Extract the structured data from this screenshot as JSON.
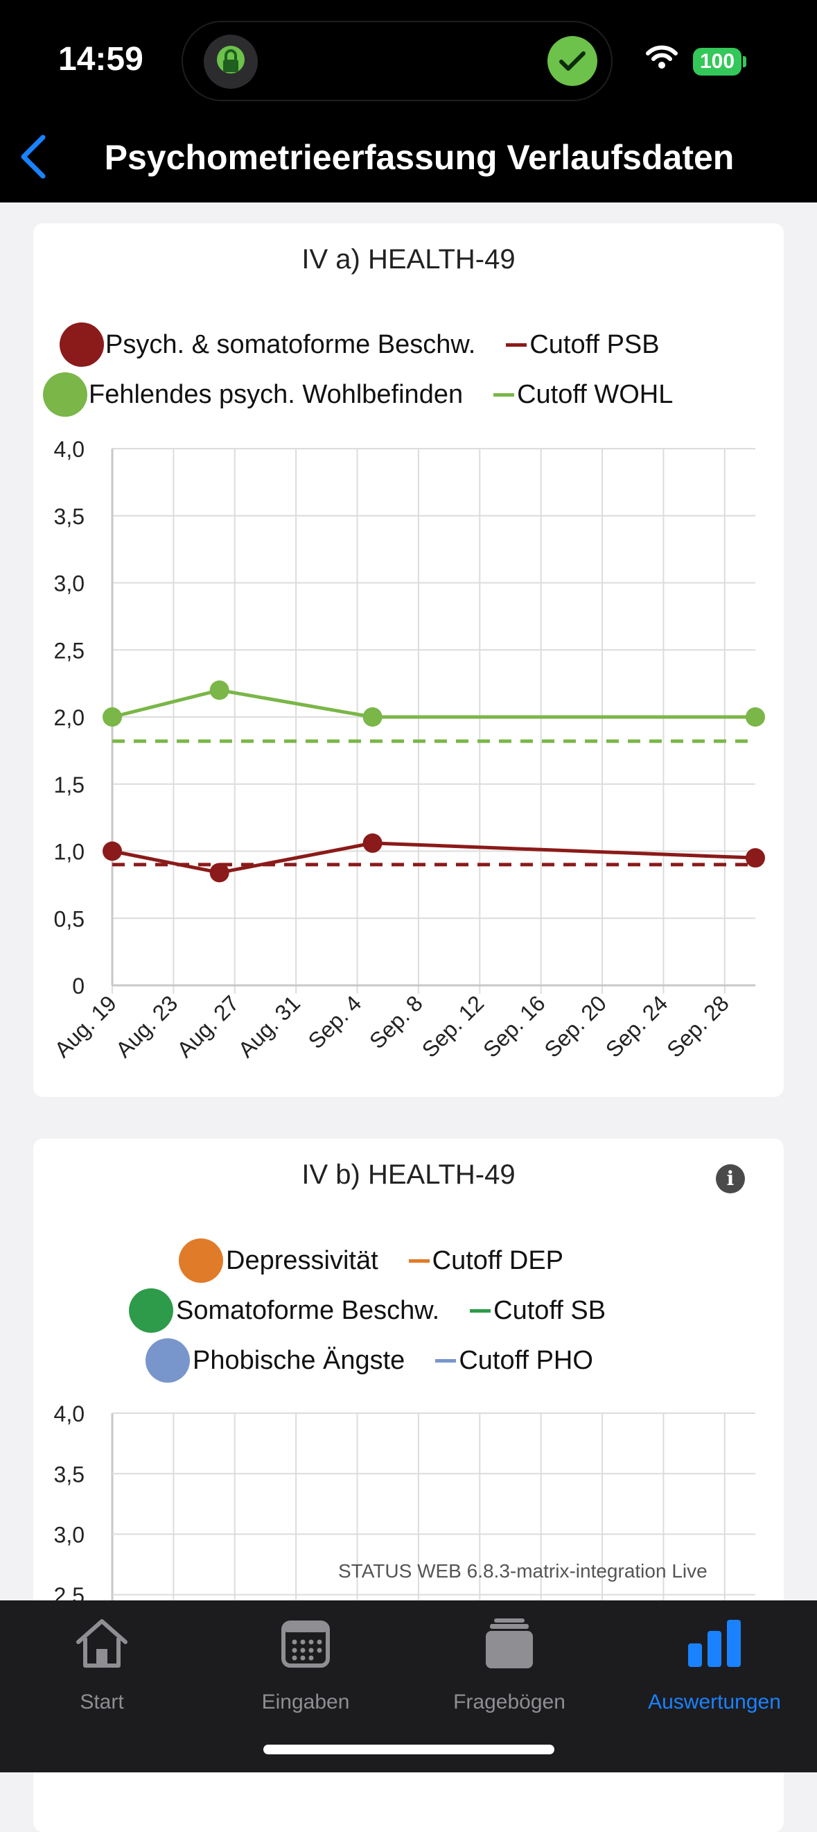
{
  "status_bar": {
    "time": "14:59",
    "battery": "100"
  },
  "nav": {
    "title": "Psychometrieerfassung Verlaufsdaten"
  },
  "charts": [
    {
      "title": "IV a) HEALTH-49",
      "legend": [
        {
          "label": "Psych. & somatoforme Beschw.",
          "color": "#8b1a1a"
        },
        {
          "label": "Cutoff PSB",
          "color": "#8b1a1a"
        },
        {
          "label": "Fehlendes psych. Wohlbefinden",
          "color": "#7ab648"
        },
        {
          "label": "Cutoff WOHL",
          "color": "#7ab648"
        }
      ]
    },
    {
      "title": "IV b) HEALTH-49",
      "info_icon": "i",
      "legend": [
        {
          "label": "Depressivität",
          "color": "#e07b2a"
        },
        {
          "label": "Cutoff DEP",
          "color": "#e07b2a"
        },
        {
          "label": "Somatoforme Beschw.",
          "color": "#2e9b4a"
        },
        {
          "label": "Cutoff SB",
          "color": "#2e9b4a"
        },
        {
          "label": "Phobische Ängste",
          "color": "#7896cc"
        },
        {
          "label": "Cutoff PHO",
          "color": "#7896cc"
        }
      ]
    }
  ],
  "chart_data": [
    {
      "type": "line",
      "title": "IV a) HEALTH-49",
      "ylim": [
        0,
        4
      ],
      "ytick_values": [
        0,
        0.5,
        1,
        1.5,
        2,
        2.5,
        3,
        3.5,
        4
      ],
      "ytick_labels": [
        "0",
        "0,5",
        "1,0",
        "1,5",
        "2,0",
        "2,5",
        "3,0",
        "3,5",
        "4,0"
      ],
      "xlim_days": [
        0,
        42
      ],
      "xtick_days": [
        0,
        4,
        8,
        12,
        16,
        20,
        24,
        28,
        32,
        36,
        40
      ],
      "xtick_labels": [
        "Aug. 19",
        "Aug. 23",
        "Aug. 27",
        "Aug. 31",
        "Sep. 4",
        "Sep. 8",
        "Sep. 12",
        "Sep. 16",
        "Sep. 20",
        "Sep. 24",
        "Sep. 28"
      ],
      "series": [
        {
          "name": "Psych. & somatoforme Beschw.",
          "color": "#8b1a1a",
          "x_days": [
            0,
            7,
            17,
            42
          ],
          "values": [
            1.0,
            0.84,
            1.06,
            0.95
          ]
        },
        {
          "name": "Fehlendes psych. Wohlbefinden",
          "color": "#7ab648",
          "x_days": [
            0,
            7,
            17,
            42
          ],
          "values": [
            2.0,
            2.2,
            2.0,
            2.0
          ]
        }
      ],
      "cutoffs": [
        {
          "name": "Cutoff PSB",
          "color": "#8b1a1a",
          "value": 0.9
        },
        {
          "name": "Cutoff WOHL",
          "color": "#7ab648",
          "value": 1.82
        }
      ]
    },
    {
      "type": "line",
      "title": "IV b) HEALTH-49",
      "ylim": [
        0,
        4
      ],
      "ytick_values": [
        2.5,
        3,
        3.5,
        4
      ],
      "ytick_labels": [
        "2,5",
        "3,0",
        "3,5",
        "4,0"
      ],
      "series": []
    }
  ],
  "footer": {
    "version": "STATUS WEB 6.8.3-matrix-integration Live"
  },
  "tabbar": {
    "items": [
      {
        "label": "Start"
      },
      {
        "label": "Eingaben"
      },
      {
        "label": "Fragebögen"
      },
      {
        "label": "Auswertungen",
        "active": true
      }
    ],
    "active_color": "#1a82ff"
  }
}
